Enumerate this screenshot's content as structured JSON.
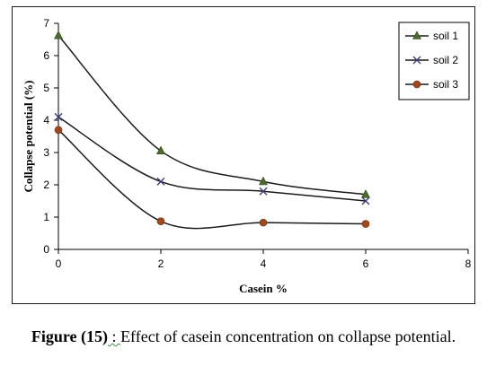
{
  "chart_data": {
    "type": "line",
    "title": "",
    "xlabel": "Casein %",
    "ylabel": "Collapse potential (%)",
    "xlim": [
      0,
      8
    ],
    "ylim": [
      0,
      7
    ],
    "xticks": [
      0,
      2,
      4,
      6,
      8
    ],
    "yticks": [
      0,
      1,
      2,
      3,
      4,
      5,
      6,
      7
    ],
    "smooth": true,
    "grid": false,
    "legend_position": "top-right",
    "series": [
      {
        "name": "soil 1",
        "marker": "triangle",
        "color": "#1a1a1a",
        "marker_color": "#4e6b2d",
        "x": [
          0,
          2,
          4,
          6
        ],
        "y": [
          6.62,
          3.05,
          2.1,
          1.7
        ]
      },
      {
        "name": "soil 2",
        "marker": "x",
        "color": "#1a1a1a",
        "marker_color": "#3d3d7a",
        "x": [
          0,
          2,
          4,
          6
        ],
        "y": [
          4.1,
          2.1,
          1.8,
          1.5
        ]
      },
      {
        "name": "soil 3",
        "marker": "circle",
        "color": "#1a1a1a",
        "marker_color": "#a0481e",
        "x": [
          0,
          2,
          4,
          6
        ],
        "y": [
          3.7,
          0.87,
          0.83,
          0.79
        ]
      }
    ]
  },
  "caption": {
    "label": "Figure (15)",
    "separator": " : ",
    "text": "Effect of casein concentration on collapse potential."
  }
}
